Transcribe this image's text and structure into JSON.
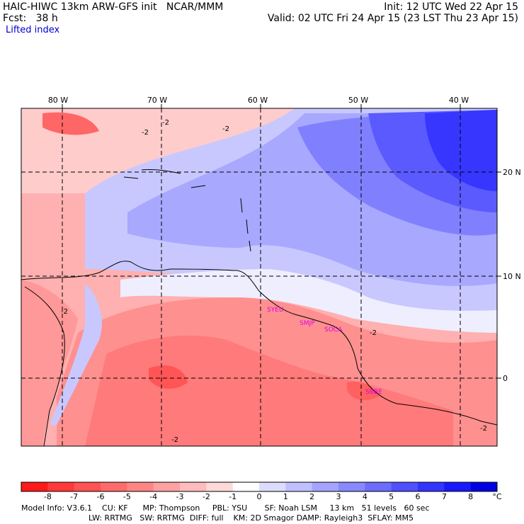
{
  "header": {
    "title": "HAIC-HIWC 13km ARW-GFS init   NCAR/MMM",
    "forecast": "Fcst:   38 h",
    "field": "Lifted index",
    "init": "Init: 12 UTC Wed 22 Apr 15",
    "valid": "Valid: 02 UTC Fri 24 Apr 15 (23 LST Thu 23 Apr 15)"
  },
  "lon_labels": [
    "80 W",
    "70 W",
    "60 W",
    "50 W",
    "40 W"
  ],
  "lat_labels": [
    "20 N",
    "10 N",
    "0"
  ],
  "contour_labels": [
    "-2",
    "-2",
    "-2",
    "-2",
    "-2",
    "-2",
    "-2"
  ],
  "stations": [
    "SYEU",
    "SMJP",
    "SOCA",
    "SBBE"
  ],
  "colorbar": {
    "unit": "°C",
    "ticks": [
      "-8",
      "-7",
      "-6",
      "-5",
      "-4",
      "-3",
      "-2",
      "-1",
      "0",
      "1",
      "2",
      "3",
      "4",
      "5",
      "6",
      "7",
      "8"
    ],
    "colors": [
      "#ff1a1a",
      "#ff3838",
      "#ff5252",
      "#ff6b6b",
      "#ff8585",
      "#ffa0a0",
      "#ffbcbc",
      "#ffd8d8",
      "#ffffff",
      "#dcdcff",
      "#c0c0ff",
      "#a4a4ff",
      "#8888ff",
      "#6c6cff",
      "#5050ff",
      "#3434ff",
      "#1818ff",
      "#0000e6"
    ]
  },
  "footer": {
    "line1": "Model Info: V3.6.1    CU: KF      MP: Thompson     PBL: YSU       SF: Noah LSM     13 km   51 levels   60 sec",
    "line2": "LW: RRTMG   SW: RRTMG  DIFF: full    KM: 2D Smagor DAMP: Rayleigh3  SFLAY: MM5"
  }
}
